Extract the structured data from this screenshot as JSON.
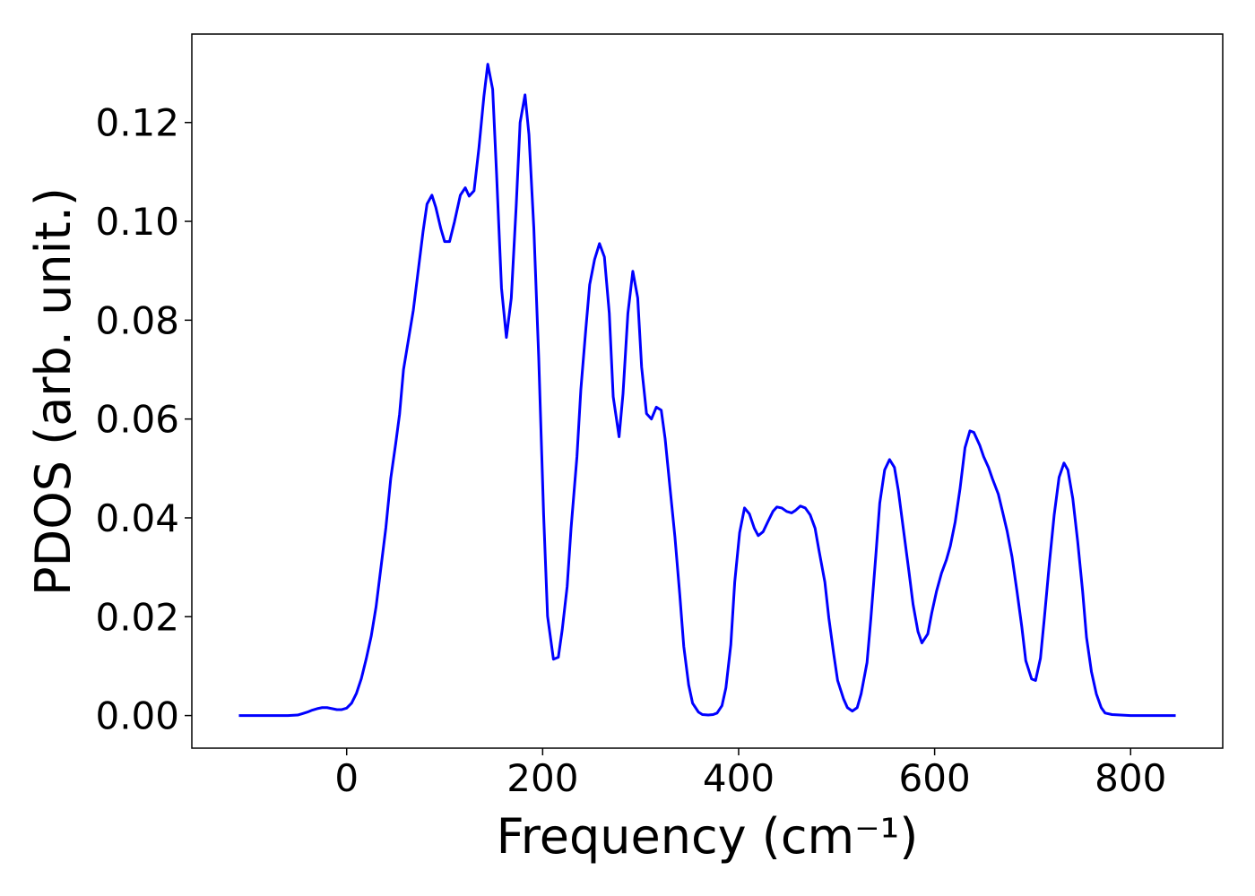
{
  "chart_data": {
    "type": "line",
    "xlabel": "Frequency (cm⁻¹)",
    "ylabel": "PDOS (arb. unit.)",
    "color": "#0000ff",
    "xlim": [
      -158,
      894
    ],
    "ylim": [
      -0.0066,
      0.1379
    ],
    "xticks": [
      0,
      200,
      400,
      600,
      800
    ],
    "yticks": [
      {
        "value": 0,
        "label": "0.00"
      },
      {
        "value": 0.02,
        "label": "0.02"
      },
      {
        "value": 0.04,
        "label": "0.04"
      },
      {
        "value": 0.06,
        "label": "0.06"
      },
      {
        "value": 0.08,
        "label": "0.08"
      },
      {
        "value": 0.1,
        "label": "0.10"
      },
      {
        "value": 0.12,
        "label": "0.12"
      }
    ],
    "x": [
      -110,
      -60,
      -50,
      -45,
      -40,
      -35,
      -30,
      -25,
      -20,
      -15,
      -10,
      -5,
      0,
      5,
      10,
      15,
      20,
      25,
      30,
      35,
      40,
      45,
      50,
      54,
      58,
      68,
      78,
      82,
      87,
      91,
      96,
      100,
      105,
      110,
      116,
      121,
      125,
      130,
      135,
      140,
      144,
      149,
      153,
      158,
      163,
      168,
      173,
      177,
      182,
      186,
      191,
      196,
      201,
      205,
      211,
      216,
      220,
      225,
      229,
      235,
      239,
      244,
      248,
      253,
      258,
      263,
      268,
      272,
      278,
      282,
      287,
      292,
      297,
      301,
      306,
      311,
      316,
      321,
      325,
      330,
      335,
      340,
      344,
      349,
      353,
      359,
      363,
      369,
      374,
      378,
      383,
      387,
      392,
      396,
      401,
      406,
      411,
      416,
      420,
      425,
      430,
      435,
      439,
      444,
      449,
      454,
      458,
      463,
      468,
      473,
      478,
      482,
      488,
      492,
      497,
      501,
      507,
      511,
      516,
      521,
      525,
      531,
      535,
      540,
      544,
      549,
      554,
      559,
      563,
      568,
      574,
      578,
      583,
      587,
      593,
      597,
      602,
      607,
      612,
      616,
      621,
      626,
      631,
      636,
      640,
      646,
      650,
      655,
      659,
      665,
      669,
      674,
      679,
      684,
      689,
      693,
      699,
      703,
      708,
      712,
      717,
      722,
      727,
      732,
      736,
      741,
      746,
      751,
      755,
      760,
      765,
      770,
      774,
      781,
      800,
      846
    ],
    "values": [
      0,
      0,
      0.0001,
      0.0004,
      0.0007,
      0.0011,
      0.0014,
      0.0016,
      0.0016,
      0.0014,
      0.0012,
      0.0012,
      0.0015,
      0.0025,
      0.0045,
      0.0075,
      0.0115,
      0.016,
      0.022,
      0.03,
      0.038,
      0.048,
      0.055,
      0.061,
      0.07,
      0.082,
      0.098,
      0.1035,
      0.1053,
      0.1028,
      0.0986,
      0.0959,
      0.0959,
      0.0999,
      0.1053,
      0.1068,
      0.1051,
      0.1062,
      0.1149,
      0.1252,
      0.1318,
      0.1267,
      0.1095,
      0.0865,
      0.0765,
      0.0845,
      0.1031,
      0.12,
      0.1256,
      0.1176,
      0.0986,
      0.0723,
      0.0406,
      0.0201,
      0.0114,
      0.0118,
      0.0174,
      0.0261,
      0.0379,
      0.0524,
      0.066,
      0.0781,
      0.0872,
      0.0923,
      0.0955,
      0.0928,
      0.0814,
      0.0645,
      0.0564,
      0.0651,
      0.0814,
      0.0899,
      0.0845,
      0.0705,
      0.0611,
      0.06,
      0.0624,
      0.0618,
      0.056,
      0.046,
      0.0361,
      0.0243,
      0.014,
      0.0062,
      0.0025,
      0.0007,
      0.0002,
      0.0001,
      0.0002,
      0.0005,
      0.002,
      0.0056,
      0.0143,
      0.027,
      0.037,
      0.042,
      0.0408,
      0.0379,
      0.0364,
      0.0372,
      0.0393,
      0.0413,
      0.0422,
      0.042,
      0.0413,
      0.041,
      0.0415,
      0.0424,
      0.042,
      0.0406,
      0.0379,
      0.0334,
      0.027,
      0.0198,
      0.0125,
      0.0071,
      0.0034,
      0.0016,
      0.0009,
      0.0016,
      0.0044,
      0.0107,
      0.0198,
      0.0324,
      0.043,
      0.0497,
      0.0518,
      0.0502,
      0.0455,
      0.0379,
      0.0288,
      0.0225,
      0.017,
      0.0147,
      0.0165,
      0.0207,
      0.0252,
      0.0288,
      0.0315,
      0.0343,
      0.0392,
      0.046,
      0.0542,
      0.0576,
      0.0573,
      0.0547,
      0.0524,
      0.0502,
      0.0479,
      0.0448,
      0.0415,
      0.0373,
      0.0321,
      0.0252,
      0.0179,
      0.0111,
      0.0074,
      0.0071,
      0.0116,
      0.0198,
      0.0306,
      0.0406,
      0.0482,
      0.0511,
      0.0497,
      0.0439,
      0.0352,
      0.0252,
      0.0158,
      0.0089,
      0.0044,
      0.0016,
      0.0005,
      0.0002,
      0,
      0
    ]
  }
}
